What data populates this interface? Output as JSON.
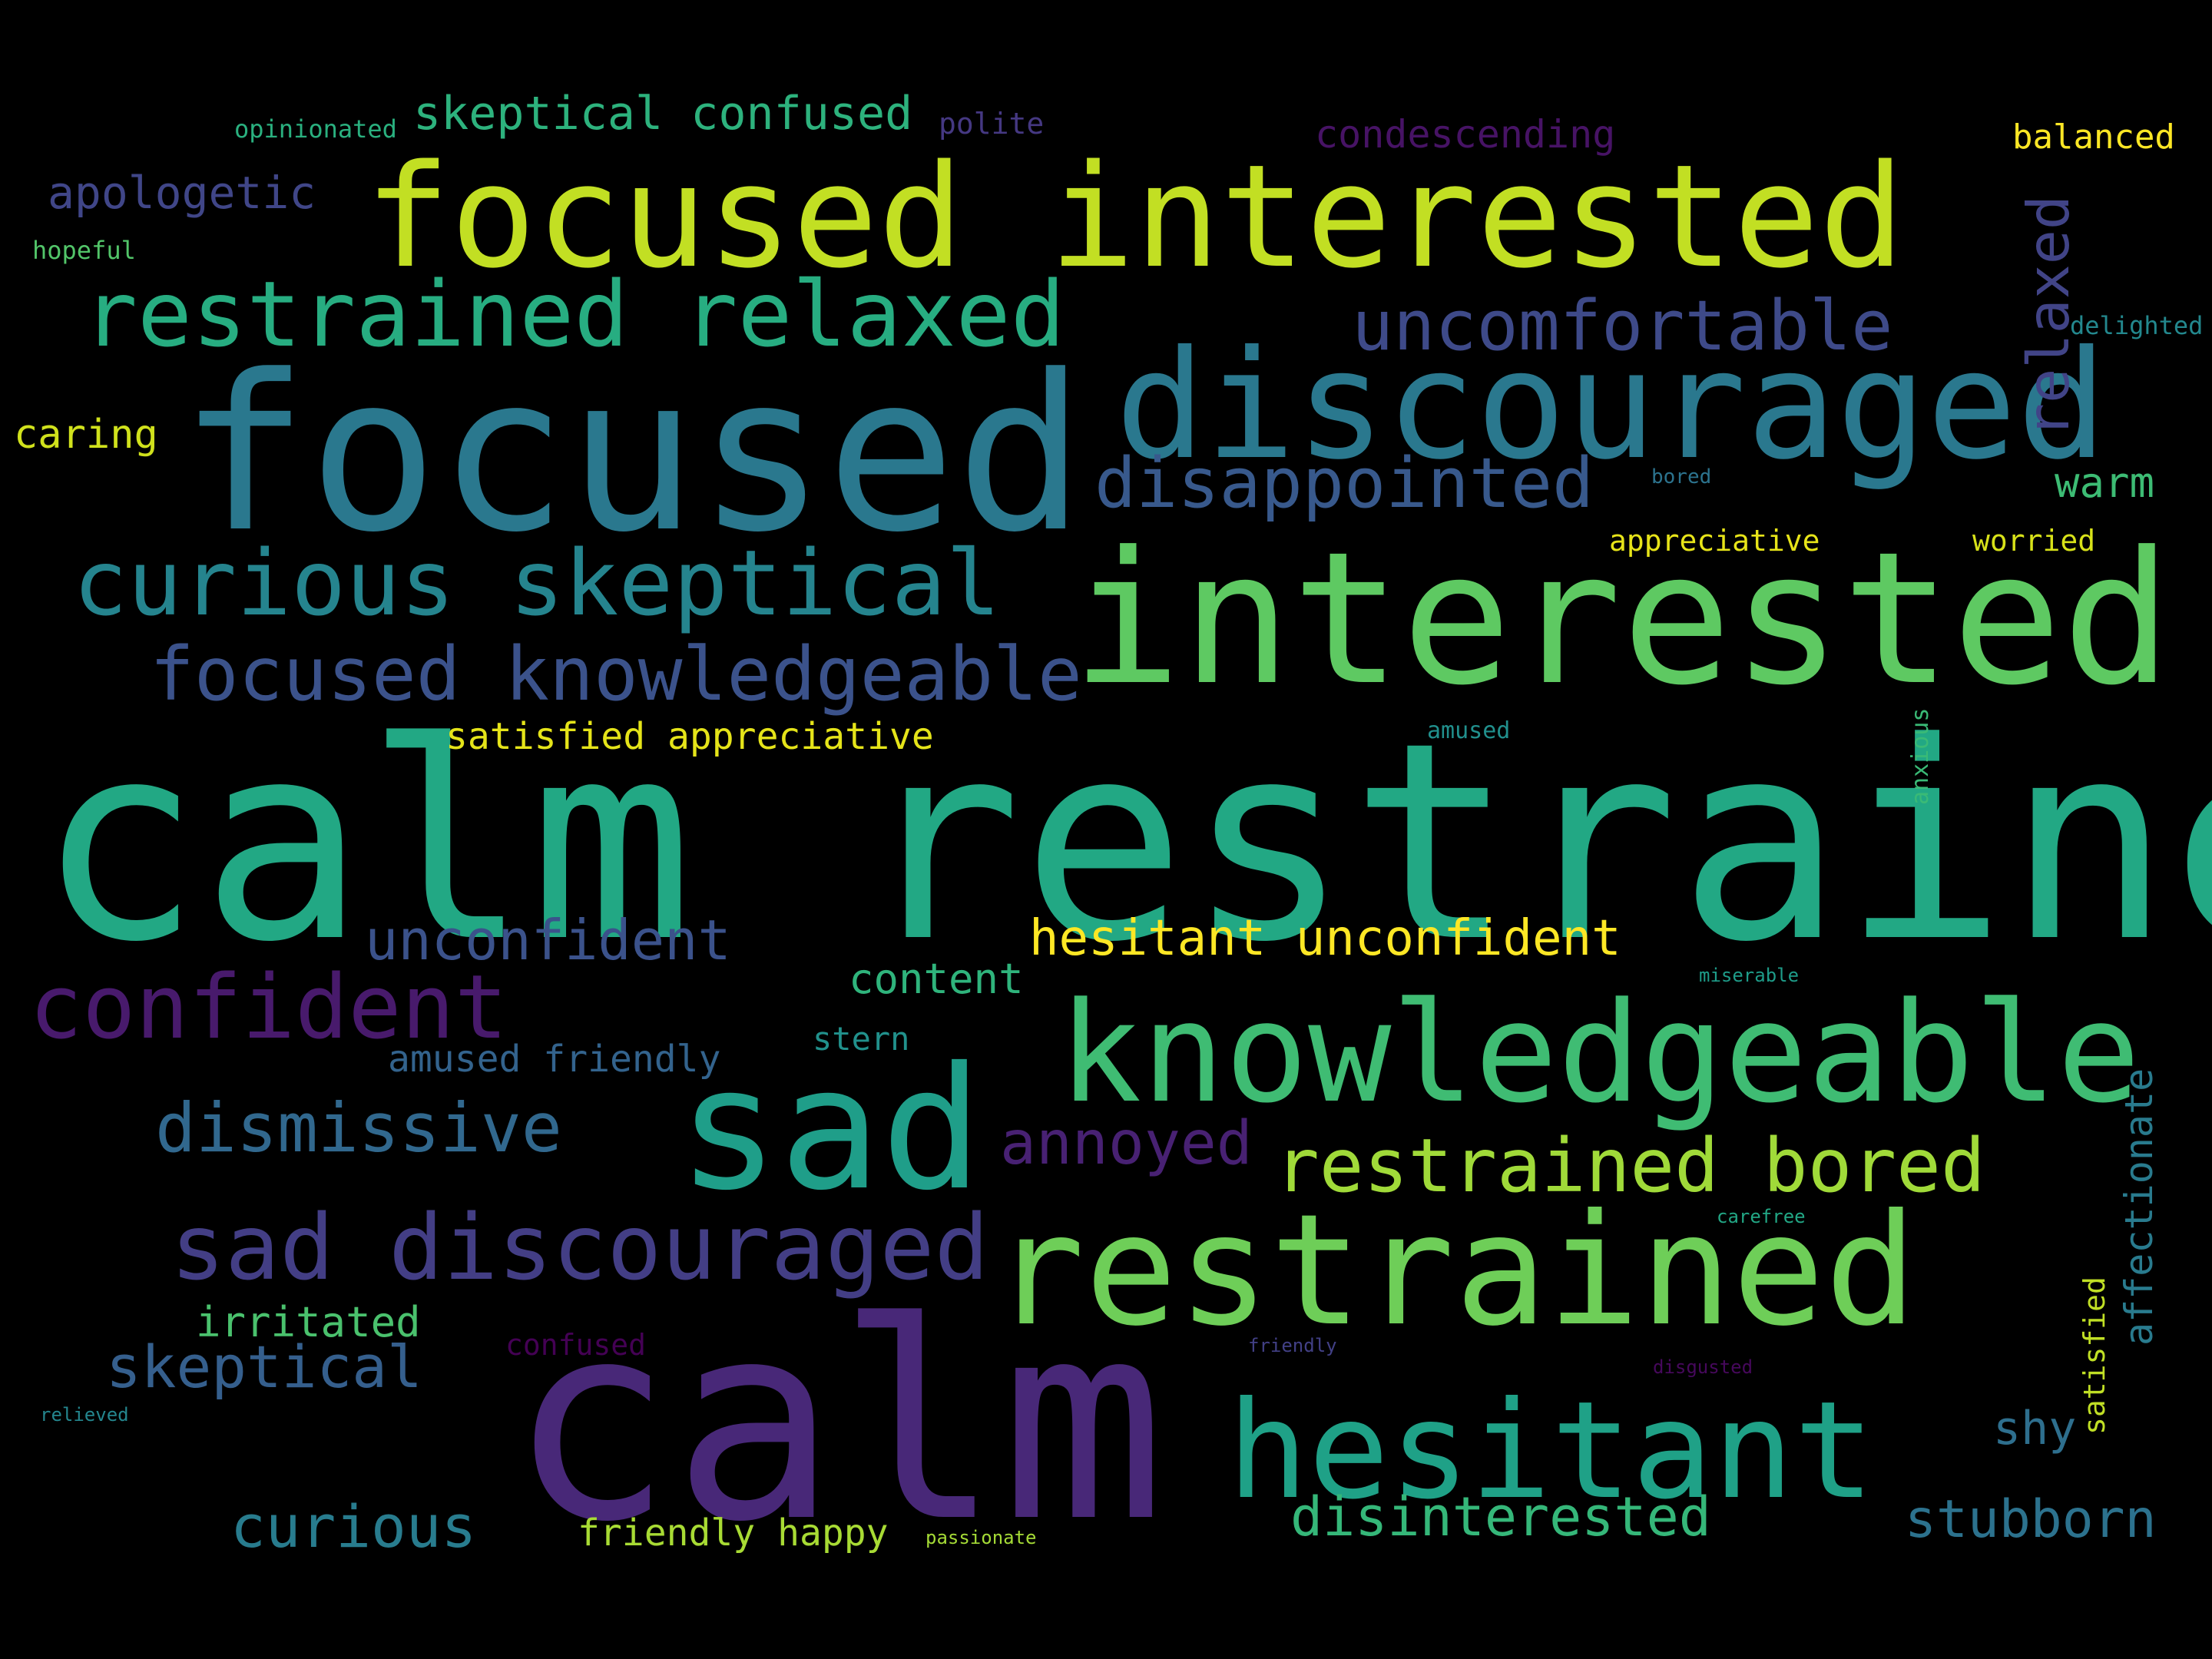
{
  "words": [
    {
      "text": "calm restrained",
      "color": "#22a884"
    },
    {
      "text": "calm",
      "color": "#482878"
    },
    {
      "text": "focused",
      "color": "#2a788e"
    },
    {
      "text": "interested",
      "color": "#5ec962"
    },
    {
      "text": "focused interested",
      "color": "#c2df23"
    },
    {
      "text": "discouraged",
      "color": "#2a788e"
    },
    {
      "text": "restrained",
      "color": "#6ece58"
    },
    {
      "text": "knowledgeable",
      "color": "#3fbc73"
    },
    {
      "text": "sad",
      "color": "#1f9e89"
    },
    {
      "text": "hesitant",
      "color": "#1fa187"
    },
    {
      "text": "restrained relaxed",
      "color": "#27ad81"
    },
    {
      "text": "curious skeptical",
      "color": "#25848e"
    },
    {
      "text": "sad discouraged",
      "color": "#433e85"
    },
    {
      "text": "focused knowledgeable",
      "color": "#3b528b"
    },
    {
      "text": "restrained bored",
      "color": "#a0da39"
    },
    {
      "text": "confident",
      "color": "#481a6c"
    },
    {
      "text": "uncomfortable",
      "color": "#3e4a89"
    },
    {
      "text": "disappointed",
      "color": "#38598c"
    },
    {
      "text": "dismissive",
      "color": "#31688e"
    },
    {
      "text": "unconfident",
      "color": "#3b528b"
    },
    {
      "text": "hesitant unconfident",
      "color": "#fde725"
    },
    {
      "text": "skeptical confused",
      "color": "#2db27d"
    },
    {
      "text": "annoyed",
      "color": "#482173"
    },
    {
      "text": "apologetic",
      "color": "#404688"
    },
    {
      "text": "skeptical",
      "color": "#355f8d"
    },
    {
      "text": "curious",
      "color": "#287c8e"
    },
    {
      "text": "disinterested",
      "color": "#35b779"
    },
    {
      "text": "stubborn",
      "color": "#2c728e"
    },
    {
      "text": "relaxed",
      "color": "#414487"
    },
    {
      "text": "affectionate",
      "color": "#297b8e"
    },
    {
      "text": "satisfied appreciative",
      "color": "#e5e419"
    },
    {
      "text": "condescending",
      "color": "#471365"
    },
    {
      "text": "balanced",
      "color": "#fde725"
    },
    {
      "text": "irritated",
      "color": "#4ac16d"
    },
    {
      "text": "friendly happy",
      "color": "#a8db34"
    },
    {
      "text": "amused friendly",
      "color": "#33638d"
    },
    {
      "text": "content",
      "color": "#2fb47c"
    },
    {
      "text": "warm",
      "color": "#3dbc74"
    },
    {
      "text": "shy",
      "color": "#2e6f8e"
    },
    {
      "text": "caring",
      "color": "#d0e11c"
    },
    {
      "text": "stern",
      "color": "#21918c"
    },
    {
      "text": "satisfied",
      "color": "#c0df25"
    },
    {
      "text": "appreciative",
      "color": "#e7e419"
    },
    {
      "text": "worried",
      "color": "#d8e219"
    },
    {
      "text": "polite",
      "color": "#453882"
    },
    {
      "text": "opinionated",
      "color": "#2ab07f"
    },
    {
      "text": "hopeful",
      "color": "#52c569"
    },
    {
      "text": "confused",
      "color": "#440154"
    },
    {
      "text": "delighted",
      "color": "#23888e"
    },
    {
      "text": "anxious",
      "color": "#3aba76"
    },
    {
      "text": "amused",
      "color": "#21908d"
    },
    {
      "text": "bored",
      "color": "#2c738e"
    },
    {
      "text": "miserable",
      "color": "#1e9c89"
    },
    {
      "text": "carefree",
      "color": "#22a785"
    },
    {
      "text": "friendly",
      "color": "#424086"
    },
    {
      "text": "disgusted",
      "color": "#46085c"
    },
    {
      "text": "relieved",
      "color": "#24868e"
    },
    {
      "text": "passionate",
      "color": "#a5db36"
    }
  ]
}
